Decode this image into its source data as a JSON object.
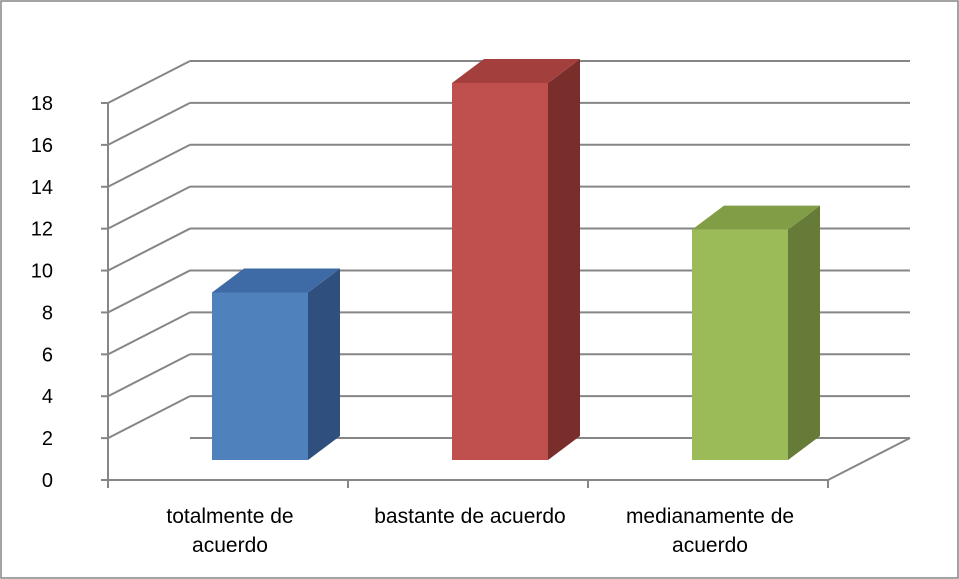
{
  "chart_data": {
    "type": "bar",
    "categories": [
      [
        "totalmente de",
        "acuerdo"
      ],
      [
        "bastante de acuerdo"
      ],
      [
        "medianamente de",
        "acuerdo"
      ]
    ],
    "values": [
      8,
      18,
      11
    ],
    "ylim": [
      0,
      18
    ],
    "yticks": [
      0,
      2,
      4,
      6,
      8,
      10,
      12,
      14,
      16,
      18
    ],
    "title": "",
    "xlabel": "",
    "ylabel": "",
    "grid": true,
    "style": "3d-column",
    "colors": [
      "#4F81BD",
      "#C0504D",
      "#9BBB59"
    ],
    "side_colors": [
      "#2F507E",
      "#7A2E2C",
      "#657B37"
    ],
    "top_colors": [
      "#3E6BA6",
      "#A33F3C",
      "#819D45"
    ]
  }
}
